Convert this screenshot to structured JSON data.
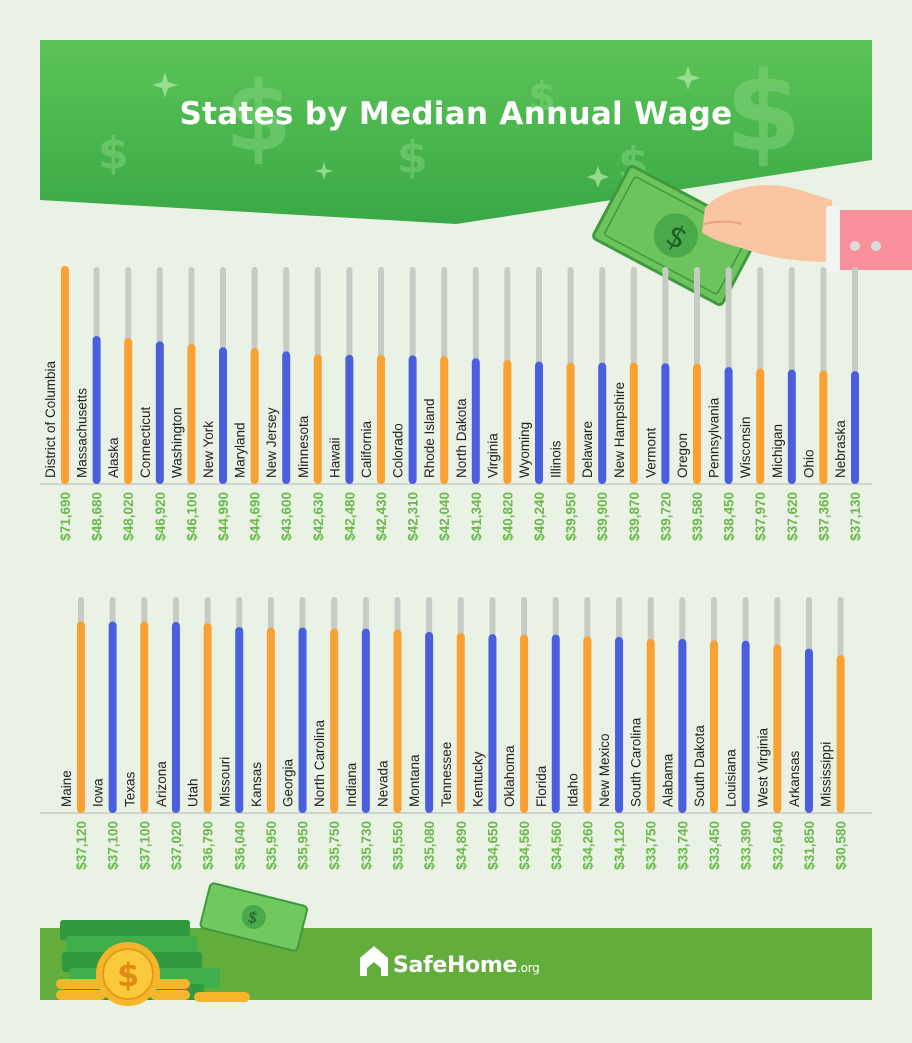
{
  "title": "States by Median Annual Wage",
  "brand": {
    "name": "SafeHome",
    "suffix": ".org"
  },
  "colors": {
    "orange": "#f9a132",
    "blue": "#4a5fdd",
    "stem": "#c6cbc6",
    "value_green": "#6ab94a",
    "banner_green": "#47b34c",
    "footer_green": "#62ad3c"
  },
  "chart_data": [
    {
      "type": "bar",
      "ylim": [
        0,
        71690
      ],
      "categories": [
        "District of Columbia",
        "Massachusetts",
        "Alaska",
        "Connecticut",
        "Washington",
        "New York",
        "Maryland",
        "New Jersey",
        "Minnesota",
        "Hawaii",
        "California",
        "Colorado",
        "Rhode Island",
        "North Dakota",
        "Virginia",
        "Wyoming",
        "Illinois",
        "Delaware",
        "New Hampshire",
        "Vermont",
        "Oregon",
        "Pennsylvania",
        "Wisconsin",
        "Michigan",
        "Ohio",
        "Nebraska"
      ],
      "values": [
        71690,
        48680,
        48020,
        46920,
        46100,
        44990,
        44690,
        43600,
        42630,
        42480,
        42430,
        42310,
        42040,
        41340,
        40820,
        40240,
        39950,
        39900,
        39870,
        39720,
        39580,
        38450,
        37970,
        37620,
        37360,
        37130
      ],
      "labels": [
        "$71,690",
        "$48,680",
        "$48,020",
        "$46,920",
        "$46,100",
        "$44,990",
        "$44,690",
        "$43,600",
        "$42,630",
        "$42,480",
        "$42,430",
        "$42,310",
        "$42,040",
        "$41,340",
        "$40,820",
        "$40,240",
        "$39,950",
        "$39,900",
        "$39,870",
        "$39,720",
        "$39,580",
        "$38,450",
        "$37,970",
        "$37,620",
        "$37,360",
        "$37,130"
      ]
    },
    {
      "type": "bar",
      "ylim": [
        0,
        71690
      ],
      "categories": [
        "Maine",
        "Iowa",
        "Texas",
        "Arizona",
        "Utah",
        "Missouri",
        "Kansas",
        "Georgia",
        "North Carolina",
        "Indiana",
        "Nevada",
        "Montana",
        "Tennessee",
        "Kentucky",
        "Oklahoma",
        "Florida",
        "Idaho",
        "New Mexico",
        "South Carolina",
        "Alabama",
        "South Dakota",
        "Louisiana",
        "West Virginia",
        "Arkansas",
        "Mississippi"
      ],
      "values": [
        37120,
        37100,
        37100,
        37020,
        36790,
        36040,
        35950,
        35950,
        35750,
        35730,
        35550,
        35080,
        34890,
        34650,
        34560,
        34560,
        34260,
        34120,
        33750,
        33740,
        33450,
        33390,
        32640,
        31850,
        30580
      ],
      "labels": [
        "$37,120",
        "$37,100",
        "$37,100",
        "$37,020",
        "$36,790",
        "$36,040",
        "$35,950",
        "$35,950",
        "$35,750",
        "$35,730",
        "$35,550",
        "$35,080",
        "$34,890",
        "$34,650",
        "$34,560",
        "$34,560",
        "$34,260",
        "$34,120",
        "$33,750",
        "$33,740",
        "$33,450",
        "$33,390",
        "$32,640",
        "$31,850",
        "$30,580"
      ]
    }
  ]
}
